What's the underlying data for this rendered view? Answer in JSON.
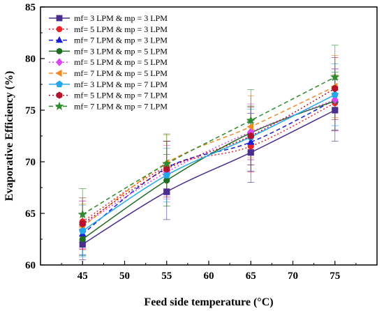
{
  "chart_data": {
    "type": "line",
    "xlabel": "Feed side temperature (°C)",
    "ylabel": "Evaporative Efficiency (%)",
    "xlim": [
      40,
      80
    ],
    "ylim": [
      60,
      85
    ],
    "xticks": [
      45,
      50,
      55,
      60,
      65,
      70,
      75
    ],
    "yticks": [
      60,
      65,
      70,
      75,
      80,
      85
    ],
    "x": [
      45,
      55,
      65,
      75
    ],
    "legend_position": "top-left",
    "series": [
      {
        "name": "mf= 3 LPM & mp = 3 LPM",
        "values": [
          62.0,
          67.1,
          70.9,
          75.0
        ],
        "error": [
          1.5,
          2.7,
          2.9,
          3.0
        ],
        "color": "#4b2d8f",
        "marker": "square",
        "dash": "solid"
      },
      {
        "name": "mf= 5 LPM & mp = 3 LPM",
        "values": [
          64.2,
          69.5,
          71.5,
          75.7
        ],
        "error": [
          2.0,
          2.5,
          2.5,
          2.7
        ],
        "color": "#e8242a",
        "marker": "circle",
        "dash": "dot"
      },
      {
        "name": "mf= 7 LPM & mp = 3 LPM",
        "values": [
          63.0,
          69.4,
          71.9,
          76.0
        ],
        "error": [
          2.0,
          2.6,
          2.8,
          3.0
        ],
        "color": "#1c1cd6",
        "marker": "triangle",
        "dash": "dash"
      },
      {
        "name": "mf= 3 LPM & mp = 5 LPM",
        "values": [
          62.5,
          68.2,
          72.8,
          75.9
        ],
        "error": [
          1.6,
          2.5,
          2.6,
          2.8
        ],
        "color": "#1f6b1f",
        "marker": "circle",
        "dash": "solid"
      },
      {
        "name": "mf= 5 LPM & mp = 5 LPM",
        "values": [
          63.9,
          69.0,
          72.9,
          76.0
        ],
        "error": [
          2.3,
          2.6,
          2.7,
          3.0
        ],
        "color": "#d946ef",
        "marker": "diamond",
        "dash": "dot"
      },
      {
        "name": "mf= 7 LPM & mp = 5 LPM",
        "values": [
          63.7,
          69.9,
          73.4,
          77.3
        ],
        "error": [
          2.2,
          2.7,
          3.0,
          3.0
        ],
        "color": "#f08a24",
        "marker": "triangle-left",
        "dash": "dash"
      },
      {
        "name": "mf= 3 LPM & mp = 7 LPM",
        "values": [
          63.3,
          68.7,
          72.4,
          76.5
        ],
        "error": [
          2.5,
          2.6,
          2.7,
          3.0
        ],
        "color": "#26a8e8",
        "marker": "pentagon",
        "dash": "solid"
      },
      {
        "name": "mf= 5 LPM & mp = 7 LPM",
        "values": [
          64.0,
          69.3,
          72.5,
          77.1
        ],
        "error": [
          2.5,
          2.7,
          2.8,
          3.0
        ],
        "color": "#b3122b",
        "marker": "hexagon",
        "dash": "dot"
      },
      {
        "name": "mf= 7 LPM & mp = 7 LPM",
        "values": [
          64.9,
          69.8,
          74.0,
          78.2
        ],
        "error": [
          2.5,
          2.9,
          3.0,
          3.1
        ],
        "color": "#2e8b2e",
        "marker": "star",
        "dash": "dash"
      }
    ]
  }
}
